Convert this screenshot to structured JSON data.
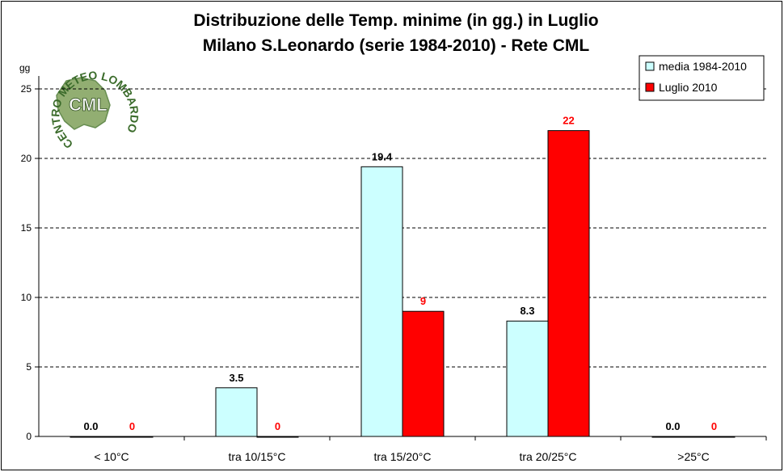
{
  "chart_data": {
    "type": "bar",
    "title": "Distribuzione delle Temp. minime (in gg.) in Luglio",
    "subtitle": "Milano S.Leonardo (serie 1984-2010) - Rete CML",
    "ylabel": "gg",
    "ylim": [
      0,
      25
    ],
    "yticks": [
      "0",
      "5",
      "10",
      "15",
      "20",
      "25"
    ],
    "grid": true,
    "legend_position": "top-right",
    "categories": [
      "< 10°C",
      "tra 10/15°C",
      "tra 15/20°C",
      "tra 20/25°C",
      ">25°C"
    ],
    "series": [
      {
        "name": "media 1984-2010",
        "color": "#ccffff",
        "label_color": "#000000",
        "values": [
          0.0,
          3.5,
          19.4,
          8.3,
          0.0
        ],
        "labels": [
          "0.0",
          "3.5",
          "19.4",
          "8.3",
          "0.0"
        ]
      },
      {
        "name": "Luglio 2010",
        "color": "#ff0000",
        "label_color": "#ff0000",
        "values": [
          0,
          0,
          9,
          22,
          0
        ],
        "labels": [
          "0",
          "0",
          "9",
          "22",
          "0"
        ]
      }
    ]
  },
  "logo": {
    "arc_text": "CENTRO METEO LOMBARDO",
    "initials": "CML"
  }
}
